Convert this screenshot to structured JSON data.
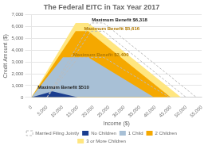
{
  "chart_data": {
    "type": "area",
    "title": "The Federal EITC in Tax Year 2017",
    "xlabel": "Income ($)",
    "ylabel": "Credit Amount ($)",
    "xlim": [
      0,
      55000
    ],
    "ylim": [
      0,
      7000
    ],
    "xticks": [
      0,
      {
        "value": 5000,
        "label": "5,000"
      },
      {
        "value": 10000,
        "label": "10,000"
      },
      {
        "value": 15000,
        "label": "15,000"
      },
      {
        "value": 20000,
        "label": "20,000"
      },
      {
        "value": 25000,
        "label": "25,000"
      },
      {
        "value": 30000,
        "label": "30,000"
      },
      {
        "value": 35000,
        "label": "35,000"
      },
      {
        "value": 40000,
        "label": "40,000"
      },
      {
        "value": 45000,
        "label": "45,000"
      },
      {
        "value": 50000,
        "label": "50,000"
      },
      {
        "value": 55000,
        "label": "55,000"
      }
    ],
    "yticks": [
      0,
      {
        "value": 1000,
        "label": "1,000"
      },
      {
        "value": 2000,
        "label": "2,000"
      },
      {
        "value": 3000,
        "label": "3,000"
      },
      {
        "value": 4000,
        "label": "4,000"
      },
      {
        "value": 5000,
        "label": "5,000"
      },
      {
        "value": 6000,
        "label": "6,000"
      },
      {
        "value": 7000,
        "label": "7,000"
      }
    ],
    "grid": "y",
    "legend": "bottom",
    "series": [
      {
        "name": "No Children",
        "type": "area",
        "color": "#1a3d8f",
        "x": [
          0,
          6800,
          15010
        ],
        "values": [
          0,
          510,
          0
        ]
      },
      {
        "name": "1 Child",
        "type": "area",
        "color": "#a8c0d6",
        "x": [
          0,
          10180,
          18340,
          39617
        ],
        "values": [
          0,
          3400,
          3400,
          0
        ]
      },
      {
        "name": "2 Children",
        "type": "area",
        "color": "#f5a800",
        "x": [
          0,
          14290,
          18340,
          45007
        ],
        "values": [
          0,
          5616,
          5616,
          0
        ]
      },
      {
        "name": "3 or More Children",
        "type": "area",
        "color": "#ffe680",
        "x": [
          0,
          14290,
          18340,
          48340
        ],
        "values": [
          0,
          6318,
          6318,
          0
        ]
      },
      {
        "name": "Married Filing Jointly",
        "type": "line",
        "line_style": "dashed",
        "color": "#bbbbbb",
        "x": [
          5000,
          19290,
          23340,
          53340,
          null,
          5000,
          19290,
          23340,
          50007,
          null,
          5000,
          15180,
          23340,
          44617
        ],
        "values": [
          0,
          6318,
          6318,
          0,
          null,
          0,
          5616,
          5616,
          0,
          null,
          0,
          3400,
          3400,
          0
        ]
      }
    ],
    "annotations": [
      {
        "text": "Maximum Benefit $6,318",
        "x": 19500,
        "y": 6420,
        "color": "#222222"
      },
      {
        "text": "Maximum Benefit $5,616",
        "x": 17000,
        "y": 5700,
        "color": "#b07800"
      },
      {
        "text": "Maximum Benefit $3,400",
        "x": 13500,
        "y": 3480,
        "color": "#b07800"
      },
      {
        "text": "Maximum Benefit $510",
        "x": 2000,
        "y": 740,
        "color": "#222222"
      }
    ]
  }
}
